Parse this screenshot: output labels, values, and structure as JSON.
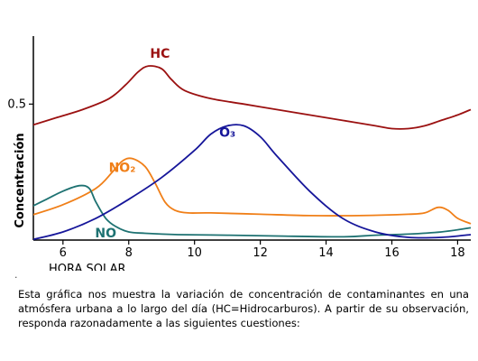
{
  "chart_data": {
    "type": "line",
    "title": "",
    "xlabel": "HORA SOLAR",
    "ylabel": "Concentración",
    "x_ticks": [
      6,
      8,
      10,
      12,
      14,
      16,
      18
    ],
    "xlim": [
      5.1,
      18.4
    ],
    "y_ticks": [
      0.5
    ],
    "ylim": [
      0.0,
      0.75
    ],
    "grid": false,
    "legend": "none",
    "series": [
      {
        "name": "HC",
        "color": "#9b1111",
        "x": [
          5.0,
          5.8,
          6.6,
          7.4,
          7.9,
          8.3,
          8.6,
          9.0,
          9.3,
          9.7,
          10.5,
          11.5,
          12.5,
          13.5,
          14.5,
          15.5,
          16.0,
          16.5,
          17.0,
          17.5,
          18.0,
          18.4
        ],
        "y": [
          0.42,
          0.45,
          0.48,
          0.52,
          0.57,
          0.62,
          0.64,
          0.63,
          0.59,
          0.55,
          0.52,
          0.5,
          0.48,
          0.46,
          0.44,
          0.42,
          0.41,
          0.41,
          0.42,
          0.44,
          0.46,
          0.48
        ]
      },
      {
        "name": "NO₂",
        "color": "#f07f18",
        "x": [
          5.0,
          6.0,
          7.0,
          7.5,
          7.8,
          8.1,
          8.5,
          8.8,
          9.1,
          9.4,
          9.8,
          10.5,
          12.0,
          13.5,
          15.0,
          16.5,
          17.0,
          17.4,
          17.7,
          18.0,
          18.4
        ],
        "y": [
          0.09,
          0.13,
          0.19,
          0.25,
          0.29,
          0.3,
          0.27,
          0.21,
          0.14,
          0.11,
          0.1,
          0.1,
          0.095,
          0.09,
          0.09,
          0.095,
          0.1,
          0.12,
          0.11,
          0.08,
          0.06
        ]
      },
      {
        "name": "NO",
        "color": "#1e7272",
        "x": [
          5.0,
          5.5,
          6.0,
          6.5,
          6.8,
          7.0,
          7.3,
          7.6,
          8.0,
          8.5,
          9.5,
          11.0,
          12.5,
          14.5,
          15.5,
          16.5,
          17.5,
          18.4
        ],
        "y": [
          0.12,
          0.15,
          0.18,
          0.2,
          0.19,
          0.14,
          0.08,
          0.05,
          0.03,
          0.025,
          0.02,
          0.018,
          0.015,
          0.012,
          0.018,
          0.022,
          0.03,
          0.045
        ]
      },
      {
        "name": "O₃",
        "color": "#16169a",
        "x": [
          5.0,
          6.0,
          7.0,
          8.0,
          9.0,
          10.0,
          10.5,
          11.0,
          11.5,
          12.0,
          12.5,
          13.5,
          14.5,
          15.5,
          16.5,
          17.5,
          18.4
        ],
        "y": [
          0.0,
          0.03,
          0.08,
          0.15,
          0.23,
          0.33,
          0.39,
          0.42,
          0.42,
          0.38,
          0.31,
          0.18,
          0.08,
          0.03,
          0.01,
          0.01,
          0.02
        ]
      }
    ],
    "annotations": [
      {
        "text": "HC",
        "series": "HC"
      },
      {
        "text": "NO₂",
        "series": "NO₂"
      },
      {
        "text": "O₃",
        "series": "O₃"
      },
      {
        "text": "NO",
        "series": "NO"
      }
    ]
  },
  "caption": "Esta gráfica nos muestra la variación de concentración de contaminantes en una atmósfera urbana a lo largo del día (HC=Hidrocarburos). A partir de su observación, responda razonadamente a las siguientes cuestiones:",
  "footnote_mark": "."
}
